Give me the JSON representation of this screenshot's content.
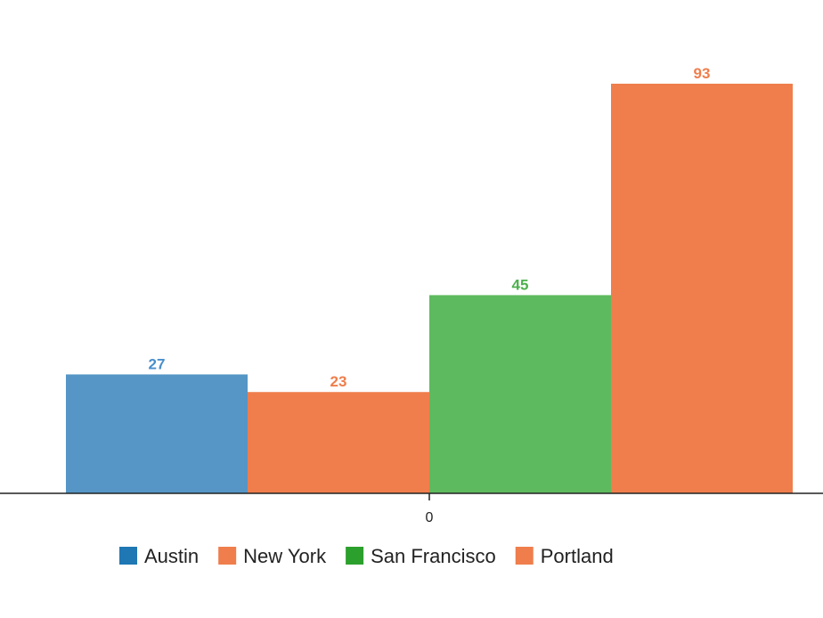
{
  "chart_data": {
    "type": "bar",
    "categories": [
      "0"
    ],
    "series": [
      {
        "name": "Austin",
        "values": [
          27
        ],
        "color": "#5596c6",
        "legend_color": "#1f77b4",
        "label_color": "#4a8fcb"
      },
      {
        "name": "New York",
        "values": [
          23
        ],
        "color": "#ef7e4c",
        "legend_color": "#ef7e4c",
        "label_color": "#ef7e4c"
      },
      {
        "name": "San Francisco",
        "values": [
          45
        ],
        "color": "#5eba5e",
        "legend_color": "#2ca02c",
        "label_color": "#4cb04c"
      },
      {
        "name": "Portland",
        "values": [
          93
        ],
        "color": "#ef7e4c",
        "legend_color": "#ef7e4c",
        "label_color": "#ef7e4c"
      }
    ],
    "ylim": [
      0,
      93
    ],
    "title": "",
    "xlabel": "",
    "ylabel": "",
    "grid": false,
    "legend_position": "bottom"
  }
}
